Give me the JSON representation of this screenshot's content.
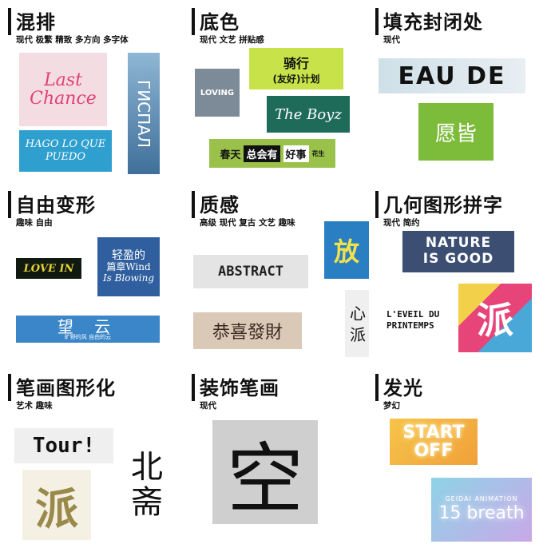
{
  "cells": [
    {
      "title": "混排",
      "tags": "现代 极繁 精致 多方向 多字体",
      "art": {
        "last_chance": "Last Chance",
        "hago": "HAGO LO QUE PUEDO",
        "vertical": "ГИСПАЛ"
      }
    },
    {
      "title": "底色",
      "tags": "现代 文艺 拼贴感",
      "art": {
        "loving": "LOVING",
        "ride1": "骑行",
        "ride2": "(友好)计划",
        "boyz": "The Boyz",
        "spring": "春天",
        "flower": "总会有",
        "good": "好事",
        "sub": "花生"
      }
    },
    {
      "title": "填充封闭处",
      "tags": "现代",
      "art": {
        "eau": "EAU DE",
        "green": "愿皆"
      }
    },
    {
      "title": "自由变形",
      "tags": "趣味 自由",
      "art": {
        "love": "LOVE IN",
        "wind1": "轻盈的",
        "wind2": "篇章Wind",
        "wind3": "Is Blowing",
        "sky": "望 云",
        "sky_sub": "旷野的风 自由的云"
      }
    },
    {
      "title": "质感",
      "tags": "高级 现代 复古 文艺 趣味",
      "art": {
        "fang": "放",
        "sketch": "ABSTRACT",
        "fortune": "恭喜發財",
        "xin": "心 派"
      }
    },
    {
      "title": "几何图形拼字",
      "tags": "现代 简约",
      "art": {
        "nature1": "NATURE",
        "nature2": "IS GOOD",
        "leveil": "L'EVEIL DU PRINTEMPS",
        "geo": "派"
      }
    },
    {
      "title": "笔画图形化",
      "tags": "艺术 趣味",
      "art": {
        "tour": "Tour!",
        "pai": "派",
        "bei": "北",
        "qi": "斋"
      }
    },
    {
      "title": "装饰笔画",
      "tags": "现代",
      "art": {
        "kong": "空"
      }
    },
    {
      "title": "发光",
      "tags": "梦幻",
      "art": {
        "start": "START",
        "off": "OFF",
        "geidai": "GEIDAI ANIMATION",
        "breath": "15 breath"
      }
    }
  ]
}
